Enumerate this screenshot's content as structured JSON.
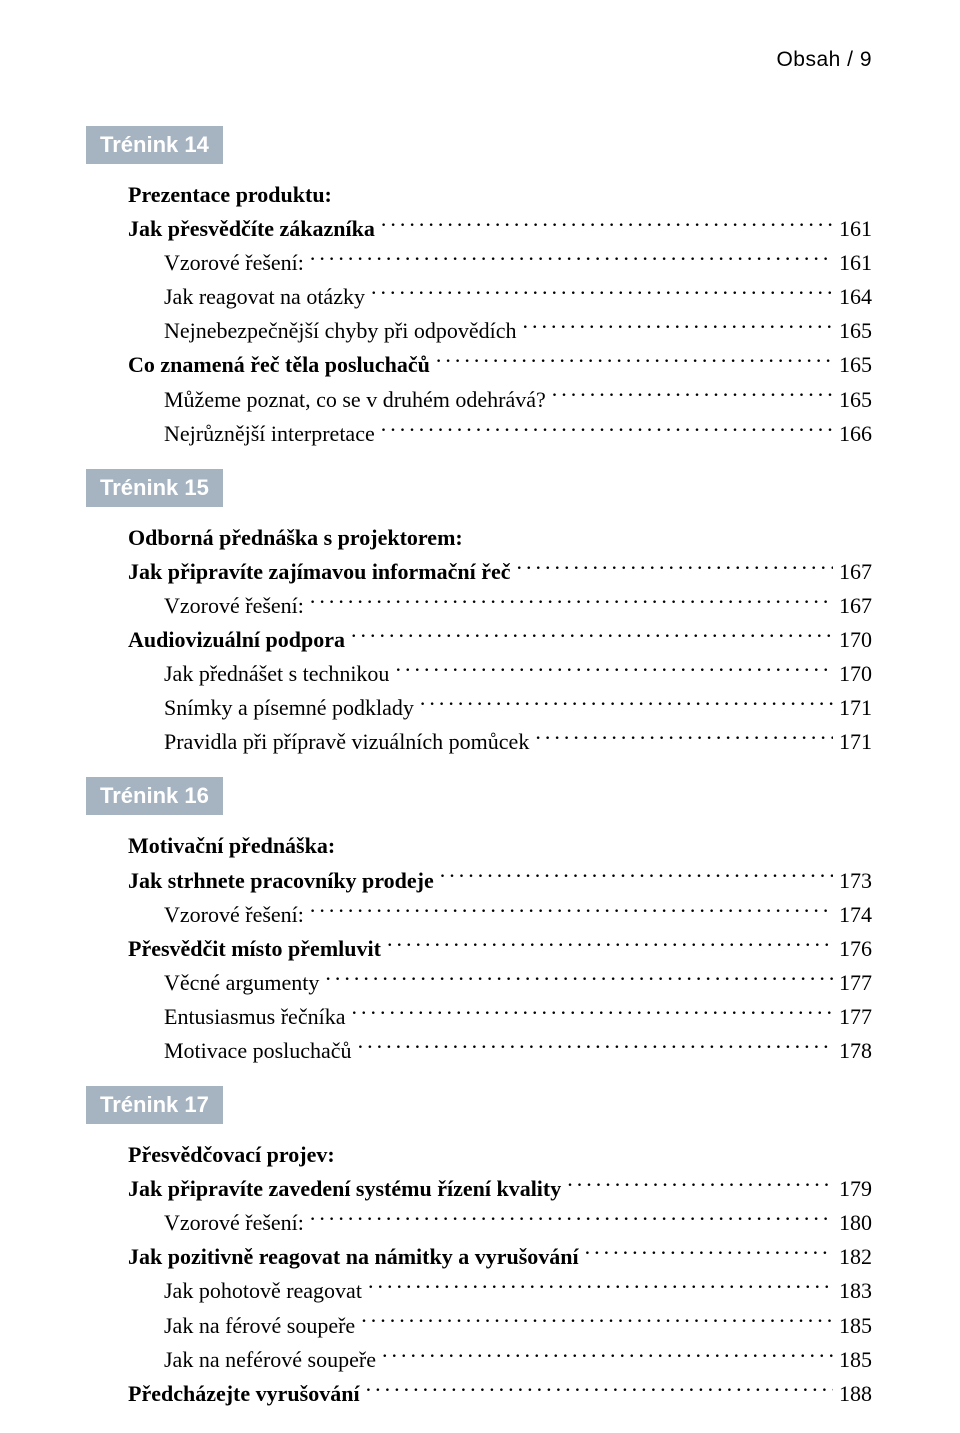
{
  "header": {
    "text": "Obsah / 9"
  },
  "colors": {
    "badge_bg": "#a6b4c2",
    "badge_fg": "#ffffff",
    "text": "#000000",
    "page_bg": "#ffffff"
  },
  "sections": [
    {
      "badge": "Trénink 14",
      "entries": [
        {
          "label": "Prezentace produktu:",
          "page": null,
          "bold": true,
          "indent": 0,
          "leader": false
        },
        {
          "label": "Jak přesvědčíte zákazníka",
          "page": "161",
          "bold": true,
          "indent": 0,
          "leader": true
        },
        {
          "label": "Vzorové řešení:",
          "page": "161",
          "bold": false,
          "indent": 1,
          "leader": true
        },
        {
          "label": "Jak reagovat na otázky",
          "page": "164",
          "bold": false,
          "indent": 1,
          "leader": true
        },
        {
          "label": "Nejnebezpečnější chyby při odpovědích",
          "page": "165",
          "bold": false,
          "indent": 1,
          "leader": true
        },
        {
          "label": "Co znamená řeč těla posluchačů",
          "page": "165",
          "bold": true,
          "indent": 0,
          "leader": true
        },
        {
          "label": "Můžeme poznat, co se v druhém odehrává?",
          "page": "165",
          "bold": false,
          "indent": 1,
          "leader": true
        },
        {
          "label": "Nejrůznější interpretace",
          "page": "166",
          "bold": false,
          "indent": 1,
          "leader": true
        }
      ]
    },
    {
      "badge": "Trénink 15",
      "entries": [
        {
          "label": "Odborná přednáška s projektorem:",
          "page": null,
          "bold": true,
          "indent": 0,
          "leader": false
        },
        {
          "label": "Jak připravíte zajímavou informační řeč",
          "page": "167",
          "bold": true,
          "indent": 0,
          "leader": true
        },
        {
          "label": "Vzorové řešení:",
          "page": "167",
          "bold": false,
          "indent": 1,
          "leader": true
        },
        {
          "label": "Audiovizuální podpora",
          "page": "170",
          "bold": true,
          "indent": 0,
          "leader": true
        },
        {
          "label": "Jak přednášet s technikou",
          "page": "170",
          "bold": false,
          "indent": 1,
          "leader": true
        },
        {
          "label": "Snímky a písemné podklady",
          "page": "171",
          "bold": false,
          "indent": 1,
          "leader": true
        },
        {
          "label": "Pravidla při přípravě vizuálních pomůcek",
          "page": "171",
          "bold": false,
          "indent": 1,
          "leader": true
        }
      ]
    },
    {
      "badge": "Trénink 16",
      "entries": [
        {
          "label": "Motivační přednáška:",
          "page": null,
          "bold": true,
          "indent": 0,
          "leader": false
        },
        {
          "label": "Jak strhnete pracovníky prodeje",
          "page": "173",
          "bold": true,
          "indent": 0,
          "leader": true
        },
        {
          "label": "Vzorové řešení:",
          "page": "174",
          "bold": false,
          "indent": 1,
          "leader": true
        },
        {
          "label": "Přesvědčit místo přemluvit",
          "page": "176",
          "bold": true,
          "indent": 0,
          "leader": true
        },
        {
          "label": "Věcné argumenty",
          "page": "177",
          "bold": false,
          "indent": 1,
          "leader": true
        },
        {
          "label": "Entusiasmus řečníka",
          "page": "177",
          "bold": false,
          "indent": 1,
          "leader": true
        },
        {
          "label": "Motivace posluchačů",
          "page": "178",
          "bold": false,
          "indent": 1,
          "leader": true
        }
      ]
    },
    {
      "badge": "Trénink 17",
      "entries": [
        {
          "label": "Přesvědčovací projev:",
          "page": null,
          "bold": true,
          "indent": 0,
          "leader": false
        },
        {
          "label": "Jak připravíte zavedení systému řízení kvality",
          "page": "179",
          "bold": true,
          "indent": 0,
          "leader": true
        },
        {
          "label": "Vzorové řešení:",
          "page": "180",
          "bold": false,
          "indent": 1,
          "leader": true
        },
        {
          "label": "Jak pozitivně reagovat na námitky a vyrušování",
          "page": "182",
          "bold": true,
          "indent": 0,
          "leader": true
        },
        {
          "label": "Jak pohotově reagovat",
          "page": "183",
          "bold": false,
          "indent": 1,
          "leader": true
        },
        {
          "label": "Jak na férové soupeře",
          "page": "185",
          "bold": false,
          "indent": 1,
          "leader": true
        },
        {
          "label": "Jak na neférové soupeře",
          "page": "185",
          "bold": false,
          "indent": 1,
          "leader": true
        },
        {
          "label": "Předcházejte vyrušování",
          "page": "188",
          "bold": true,
          "indent": 0,
          "leader": true
        }
      ]
    }
  ]
}
